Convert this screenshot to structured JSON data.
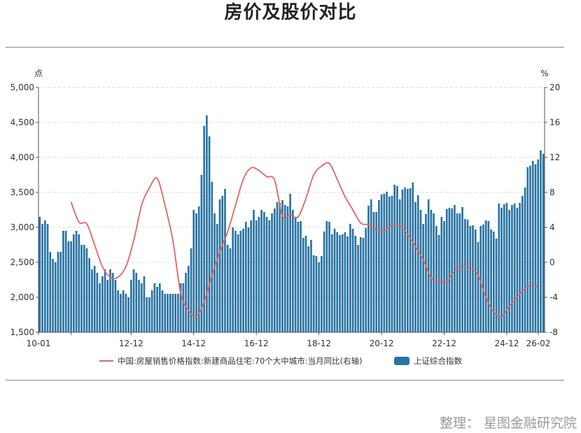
{
  "title": "房价及股价对比",
  "footer": "整理：  星图金融研究院",
  "chart_data": {
    "type": "bar+line",
    "title": "房价及股价对比",
    "left_axis": {
      "unit": "点",
      "ticks": [
        "1,500",
        "2,000",
        "2,500",
        "3,000",
        "3,500",
        "4,000",
        "4,500",
        "5,000"
      ],
      "ylim": [
        1500,
        5000
      ]
    },
    "right_axis": {
      "unit": "%",
      "ticks": [
        "-8",
        "-4",
        "0",
        "4",
        "8",
        "12",
        "16",
        "20"
      ],
      "ylim": [
        -8,
        20
      ]
    },
    "x_ticks": [
      "10-01",
      "12-12",
      "14-12",
      "16-12",
      "18-12",
      "20-12",
      "22-12",
      "24-12",
      "26-02"
    ],
    "x_range": {
      "start": "2010-01",
      "end": "2026-02",
      "frequency": "monthly"
    },
    "grid": true,
    "legend_position": "bottom",
    "colors": {
      "bar": "#2a74a3",
      "line": "#e06565",
      "grid": "#d8d8d8"
    },
    "series": [
      {
        "name": "上证综合指数",
        "type": "bar",
        "axis": "left",
        "anchors": [
          [
            "2010-01",
            3150
          ],
          [
            "2010-02",
            3050
          ],
          [
            "2010-03",
            3100
          ],
          [
            "2010-04",
            3050
          ],
          [
            "2010-05",
            2650
          ],
          [
            "2010-06",
            2550
          ],
          [
            "2010-07",
            2500
          ],
          [
            "2010-08",
            2650
          ],
          [
            "2010-09",
            2650
          ],
          [
            "2010-10",
            2950
          ],
          [
            "2010-11",
            2950
          ],
          [
            "2010-12",
            2800
          ],
          [
            "2011-01",
            2800
          ],
          [
            "2011-02",
            2900
          ],
          [
            "2011-03",
            2950
          ],
          [
            "2011-04",
            2900
          ],
          [
            "2011-05",
            2750
          ],
          [
            "2011-06",
            2750
          ],
          [
            "2011-07",
            2700
          ],
          [
            "2011-08",
            2560
          ],
          [
            "2011-09",
            2400
          ],
          [
            "2011-10",
            2450
          ],
          [
            "2011-11",
            2350
          ],
          [
            "2011-12",
            2200
          ],
          [
            "2012-01",
            2300
          ],
          [
            "2012-02",
            2400
          ],
          [
            "2012-03",
            2250
          ],
          [
            "2012-04",
            2400
          ],
          [
            "2012-05",
            2350
          ],
          [
            "2012-06",
            2250
          ],
          [
            "2012-07",
            2100
          ],
          [
            "2012-08",
            2050
          ],
          [
            "2012-09",
            2100
          ],
          [
            "2012-10",
            2050
          ],
          [
            "2012-11",
            2000
          ],
          [
            "2012-12",
            2250
          ],
          [
            "2013-01",
            2400
          ],
          [
            "2013-02",
            2350
          ],
          [
            "2013-03",
            2250
          ],
          [
            "2013-04",
            2200
          ],
          [
            "2013-05",
            2300
          ],
          [
            "2013-06",
            2000
          ],
          [
            "2013-07",
            2000
          ],
          [
            "2013-08",
            2100
          ],
          [
            "2013-09",
            2200
          ],
          [
            "2013-10",
            2150
          ],
          [
            "2013-11",
            2200
          ],
          [
            "2013-12",
            2100
          ],
          [
            "2014-01",
            2050
          ],
          [
            "2014-02",
            2050
          ],
          [
            "2014-03",
            2050
          ],
          [
            "2014-04",
            2050
          ],
          [
            "2014-05",
            2050
          ],
          [
            "2014-06",
            2050
          ],
          [
            "2014-07",
            2200
          ],
          [
            "2014-08",
            2200
          ],
          [
            "2014-09",
            2350
          ],
          [
            "2014-10",
            2450
          ],
          [
            "2014-11",
            2700
          ],
          [
            "2014-12",
            3250
          ],
          [
            "2015-01",
            3200
          ],
          [
            "2015-02",
            3300
          ],
          [
            "2015-03",
            3750
          ],
          [
            "2015-04",
            4450
          ],
          [
            "2015-05",
            4600
          ],
          [
            "2015-06",
            4300
          ],
          [
            "2015-07",
            3650
          ],
          [
            "2015-08",
            3200
          ],
          [
            "2015-09",
            3050
          ],
          [
            "2015-10",
            3400
          ],
          [
            "2015-11",
            3450
          ],
          [
            "2015-12",
            3550
          ],
          [
            "2016-01",
            2750
          ],
          [
            "2016-02",
            2700
          ],
          [
            "2016-03",
            3000
          ],
          [
            "2016-04",
            2950
          ],
          [
            "2016-05",
            2900
          ],
          [
            "2016-06",
            2950
          ],
          [
            "2016-07",
            2980
          ],
          [
            "2016-08",
            3080
          ],
          [
            "2016-09",
            3000
          ],
          [
            "2016-10",
            3100
          ],
          [
            "2016-11",
            3250
          ],
          [
            "2016-12",
            3100
          ],
          [
            "2017-01",
            3150
          ],
          [
            "2017-02",
            3250
          ],
          [
            "2017-03",
            3220
          ],
          [
            "2017-04",
            3150
          ],
          [
            "2017-05",
            3100
          ],
          [
            "2017-06",
            3200
          ],
          [
            "2017-07",
            3270
          ],
          [
            "2017-08",
            3360
          ],
          [
            "2017-09",
            3350
          ],
          [
            "2017-10",
            3390
          ],
          [
            "2017-11",
            3320
          ],
          [
            "2017-12",
            3300
          ],
          [
            "2018-01",
            3480
          ],
          [
            "2018-02",
            3250
          ],
          [
            "2018-03",
            3150
          ],
          [
            "2018-04",
            3080
          ],
          [
            "2018-05",
            3090
          ],
          [
            "2018-06",
            2850
          ],
          [
            "2018-07",
            2880
          ],
          [
            "2018-08",
            2730
          ],
          [
            "2018-09",
            2820
          ],
          [
            "2018-10",
            2600
          ],
          [
            "2018-11",
            2590
          ],
          [
            "2018-12",
            2500
          ],
          [
            "2019-01",
            2590
          ],
          [
            "2019-02",
            2940
          ],
          [
            "2019-03",
            3090
          ],
          [
            "2019-04",
            3080
          ],
          [
            "2019-05",
            2900
          ],
          [
            "2019-06",
            2980
          ],
          [
            "2019-07",
            2930
          ],
          [
            "2019-08",
            2890
          ],
          [
            "2019-09",
            2900
          ],
          [
            "2019-10",
            2930
          ],
          [
            "2019-11",
            2870
          ],
          [
            "2019-12",
            3050
          ],
          [
            "2020-01",
            2980
          ],
          [
            "2020-02",
            2880
          ],
          [
            "2020-03",
            2750
          ],
          [
            "2020-04",
            2860
          ],
          [
            "2020-05",
            2850
          ],
          [
            "2020-06",
            2990
          ],
          [
            "2020-07",
            3310
          ],
          [
            "2020-08",
            3400
          ],
          [
            "2020-09",
            3220
          ],
          [
            "2020-10",
            3220
          ],
          [
            "2020-11",
            3390
          ],
          [
            "2020-12",
            3470
          ],
          [
            "2021-01",
            3480
          ],
          [
            "2021-02",
            3510
          ],
          [
            "2021-03",
            3440
          ],
          [
            "2021-04",
            3450
          ],
          [
            "2021-05",
            3610
          ],
          [
            "2021-06",
            3590
          ],
          [
            "2021-07",
            3400
          ],
          [
            "2021-08",
            3540
          ],
          [
            "2021-09",
            3570
          ],
          [
            "2021-10",
            3550
          ],
          [
            "2021-11",
            3560
          ],
          [
            "2021-12",
            3640
          ],
          [
            "2022-01",
            3360
          ],
          [
            "2022-02",
            3460
          ],
          [
            "2022-03",
            3250
          ],
          [
            "2022-04",
            3050
          ],
          [
            "2022-05",
            3190
          ],
          [
            "2022-06",
            3400
          ],
          [
            "2022-07",
            3250
          ],
          [
            "2022-08",
            3200
          ],
          [
            "2022-09",
            3020
          ],
          [
            "2022-10",
            2890
          ],
          [
            "2022-11",
            3150
          ],
          [
            "2022-12",
            3090
          ],
          [
            "2023-01",
            3260
          ],
          [
            "2023-02",
            3280
          ],
          [
            "2023-03",
            3270
          ],
          [
            "2023-04",
            3320
          ],
          [
            "2023-05",
            3200
          ],
          [
            "2023-06",
            3200
          ],
          [
            "2023-07",
            3290
          ],
          [
            "2023-08",
            3120
          ],
          [
            "2023-09",
            3110
          ],
          [
            "2023-10",
            3020
          ],
          [
            "2023-11",
            3030
          ],
          [
            "2023-12",
            2970
          ],
          [
            "2024-01",
            2790
          ],
          [
            "2024-02",
            3020
          ],
          [
            "2024-03",
            3040
          ],
          [
            "2024-04",
            3100
          ],
          [
            "2024-05",
            3090
          ],
          [
            "2024-06",
            2970
          ],
          [
            "2024-07",
            2940
          ],
          [
            "2024-08",
            2840
          ],
          [
            "2024-09",
            3340
          ],
          [
            "2024-10",
            3280
          ],
          [
            "2024-11",
            3330
          ],
          [
            "2024-12",
            3350
          ],
          [
            "2025-01",
            3250
          ],
          [
            "2025-02",
            3320
          ],
          [
            "2025-03",
            3340
          ],
          [
            "2025-04",
            3280
          ],
          [
            "2025-05",
            3350
          ],
          [
            "2025-06",
            3450
          ],
          [
            "2025-07",
            3570
          ],
          [
            "2025-08",
            3860
          ],
          [
            "2025-09",
            3880
          ],
          [
            "2025-10",
            3950
          ],
          [
            "2025-11",
            3900
          ],
          [
            "2025-12",
            3970
          ],
          [
            "2026-01",
            4100
          ],
          [
            "2026-02",
            4050
          ]
        ]
      },
      {
        "name": "中国:房屋销售价格指数:新建商品住宅:70个大中城市:当月同比(右轴)",
        "type": "line",
        "axis": "right",
        "anchors": [
          [
            "2011-01",
            6.9
          ],
          [
            "2011-04",
            4.6
          ],
          [
            "2011-07",
            4.4
          ],
          [
            "2011-10",
            2.0
          ],
          [
            "2012-01",
            -0.5
          ],
          [
            "2012-04",
            -1.7
          ],
          [
            "2012-07",
            -1.7
          ],
          [
            "2012-10",
            -0.5
          ],
          [
            "2013-01",
            2.5
          ],
          [
            "2013-04",
            6.5
          ],
          [
            "2013-07",
            8.5
          ],
          [
            "2013-10",
            9.6
          ],
          [
            "2014-01",
            6.5
          ],
          [
            "2014-04",
            2.5
          ],
          [
            "2014-07",
            -3.5
          ],
          [
            "2014-10",
            -5.5
          ],
          [
            "2015-01",
            -6.2
          ],
          [
            "2015-04",
            -4.5
          ],
          [
            "2015-07",
            -1.5
          ],
          [
            "2015-10",
            1.2
          ],
          [
            "2016-01",
            3.5
          ],
          [
            "2016-04",
            6.5
          ],
          [
            "2016-07",
            9.5
          ],
          [
            "2016-10",
            10.8
          ],
          [
            "2017-01",
            10.5
          ],
          [
            "2017-04",
            9.8
          ],
          [
            "2017-07",
            9.4
          ],
          [
            "2017-10",
            5.3
          ],
          [
            "2018-01",
            5.4
          ],
          [
            "2018-04",
            5.2
          ],
          [
            "2018-07",
            7.3
          ],
          [
            "2018-10",
            10.0
          ],
          [
            "2019-01",
            11.0
          ],
          [
            "2019-04",
            11.3
          ],
          [
            "2019-07",
            9.5
          ],
          [
            "2019-10",
            7.5
          ],
          [
            "2020-01",
            6.0
          ],
          [
            "2020-04",
            4.5
          ],
          [
            "2020-07",
            4.3
          ],
          [
            "2020-10",
            3.8
          ],
          [
            "2021-01",
            3.6
          ],
          [
            "2021-04",
            4.3
          ],
          [
            "2021-07",
            4.2
          ],
          [
            "2021-10",
            3.2
          ],
          [
            "2022-01",
            1.8
          ],
          [
            "2022-04",
            0.3
          ],
          [
            "2022-07",
            -1.8
          ],
          [
            "2022-10",
            -2.2
          ],
          [
            "2023-01",
            -2.2
          ],
          [
            "2023-04",
            -1.0
          ],
          [
            "2023-07",
            -0.5
          ],
          [
            "2023-10",
            -0.6
          ],
          [
            "2024-01",
            -1.5
          ],
          [
            "2024-04",
            -4.0
          ],
          [
            "2024-07",
            -5.7
          ],
          [
            "2024-10",
            -6.2
          ],
          [
            "2025-01",
            -5.0
          ],
          [
            "2025-04",
            -4.0
          ],
          [
            "2025-07",
            -3.0
          ],
          [
            "2025-10",
            -2.6
          ],
          [
            "2025-12",
            -2.9
          ]
        ]
      }
    ]
  }
}
